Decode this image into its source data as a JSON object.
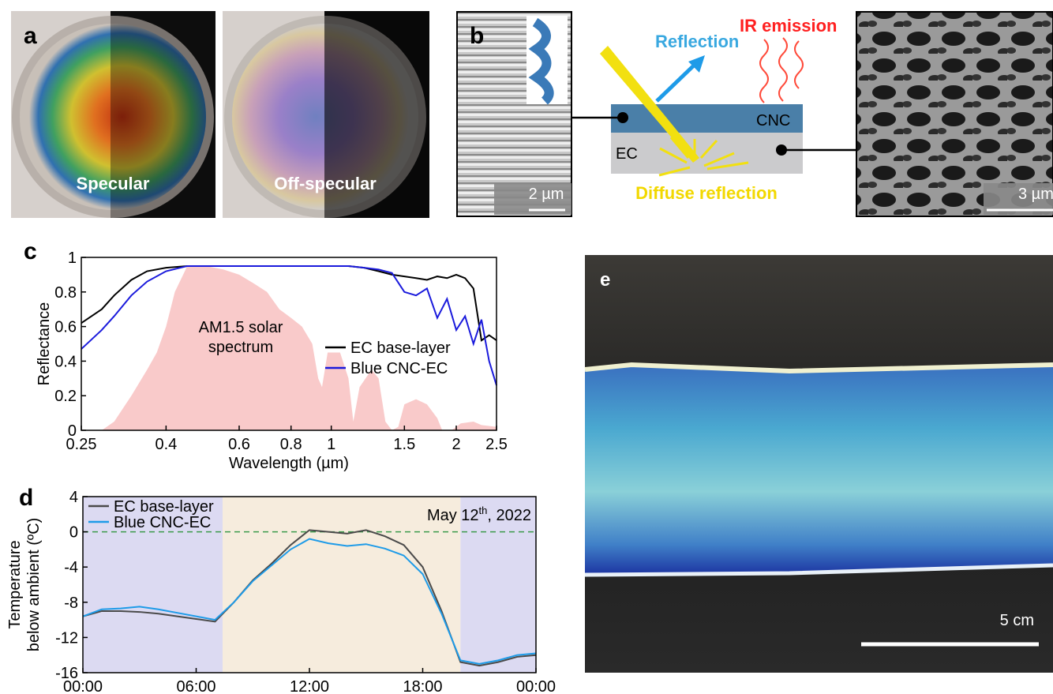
{
  "panels": {
    "a": {
      "label": "a",
      "left": "Specular",
      "right": "Off-specular"
    },
    "b": {
      "label": "b",
      "scale_left": "2 µm",
      "reflection": "Reflection",
      "ir": "IR emission",
      "cnc": "CNC",
      "ec": "EC",
      "diffuse": "Diffuse reflection",
      "scale_right": "3 µm"
    },
    "c": {
      "label": "c"
    },
    "d": {
      "label": "d"
    },
    "e": {
      "label": "e",
      "scale": "5 cm"
    }
  },
  "chart_data": [
    {
      "type": "line",
      "xlabel": "Wavelength (µm)",
      "ylabel": [
        "Reflectance"
      ],
      "xscale": "log",
      "xlim": [
        0.25,
        2.5
      ],
      "xticks": [
        0.25,
        0.4,
        0.6,
        0.8,
        1,
        1.5,
        2,
        2.5
      ],
      "ylim": [
        0,
        1
      ],
      "yticks": [
        0,
        0.2,
        0.4,
        0.6,
        0.8,
        1
      ],
      "x": [
        0.25,
        0.28,
        0.3,
        0.33,
        0.36,
        0.4,
        0.45,
        0.5,
        0.6,
        0.7,
        0.8,
        0.9,
        0.95,
        1,
        1.1,
        1.2,
        1.3,
        1.4,
        1.5,
        1.6,
        1.7,
        1.8,
        1.9,
        2,
        2.1,
        2.2,
        2.3,
        2.4,
        2.5
      ],
      "series": [
        {
          "name": "EC base-layer",
          "color": "#000000",
          "values": [
            0.62,
            0.7,
            0.78,
            0.87,
            0.92,
            0.94,
            0.95,
            0.95,
            0.95,
            0.95,
            0.95,
            0.95,
            0.95,
            0.95,
            0.95,
            0.94,
            0.92,
            0.9,
            0.89,
            0.88,
            0.87,
            0.89,
            0.88,
            0.9,
            0.88,
            0.82,
            0.52,
            0.55,
            0.52
          ]
        },
        {
          "name": "Blue CNC-EC",
          "color": "#1a1adc",
          "values": [
            0.47,
            0.58,
            0.66,
            0.78,
            0.86,
            0.92,
            0.95,
            0.95,
            0.95,
            0.95,
            0.95,
            0.95,
            0.95,
            0.95,
            0.95,
            0.94,
            0.93,
            0.91,
            0.8,
            0.78,
            0.82,
            0.65,
            0.76,
            0.58,
            0.66,
            0.5,
            0.64,
            0.4,
            0.26
          ]
        }
      ],
      "spectrum": {
        "label": [
          "AM1.5 solar",
          "spectrum"
        ],
        "color": "#f9caca",
        "x": [
          0.28,
          0.3,
          0.33,
          0.36,
          0.38,
          0.4,
          0.42,
          0.45,
          0.5,
          0.55,
          0.6,
          0.65,
          0.7,
          0.75,
          0.8,
          0.85,
          0.9,
          0.93,
          0.95,
          0.98,
          1.05,
          1.1,
          1.13,
          1.17,
          1.25,
          1.3,
          1.35,
          1.4,
          1.45,
          1.5,
          1.6,
          1.7,
          1.8,
          1.85,
          1.95,
          2.05,
          2.2,
          2.3,
          2.5
        ],
        "values": [
          0,
          0.05,
          0.2,
          0.35,
          0.45,
          0.6,
          0.8,
          0.95,
          0.95,
          0.93,
          0.9,
          0.85,
          0.8,
          0.7,
          0.65,
          0.6,
          0.5,
          0.3,
          0.25,
          0.45,
          0.45,
          0.3,
          0.05,
          0.25,
          0.35,
          0.3,
          0.05,
          0,
          0.02,
          0.15,
          0.18,
          0.15,
          0.07,
          0,
          0,
          0.04,
          0.05,
          0.03,
          0.02
        ]
      },
      "legend": "right"
    },
    {
      "type": "line",
      "ylabel": [
        "Temperature",
        "below ambient (ºC)"
      ],
      "xlim": [
        0,
        24
      ],
      "xticks": [
        {
          "value": 0,
          "label": "00:00"
        },
        {
          "value": 6,
          "label": "06:00"
        },
        {
          "value": 12,
          "label": "12:00"
        },
        {
          "value": 18,
          "label": "18:00"
        },
        {
          "value": 24,
          "label": "00:00"
        }
      ],
      "ylim": [
        -16,
        4
      ],
      "yticks": [
        -16,
        -12,
        -8,
        -4,
        0,
        4
      ],
      "x": [
        0,
        1,
        2,
        3,
        4,
        5,
        6,
        7,
        8,
        9,
        10,
        11,
        12,
        13,
        14,
        15,
        16,
        17,
        18,
        19,
        20,
        21,
        22,
        23,
        24
      ],
      "series": [
        {
          "name": "EC base-layer",
          "color": "#4a4a4a",
          "values": [
            -9.6,
            -9,
            -9,
            -9.1,
            -9.3,
            -9.6,
            -9.9,
            -10.2,
            -8,
            -5.5,
            -3.6,
            -1.5,
            0.2,
            0,
            -0.2,
            0.2,
            -0.5,
            -1.5,
            -4,
            -9,
            -14.8,
            -15.2,
            -14.8,
            -14.2,
            -14
          ]
        },
        {
          "name": "Blue CNC-EC",
          "color": "#1e9be8",
          "values": [
            -9.6,
            -8.8,
            -8.7,
            -8.5,
            -8.8,
            -9.2,
            -9.6,
            -10,
            -8,
            -5.6,
            -3.8,
            -2,
            -0.8,
            -1.3,
            -1.6,
            -1.4,
            -1.9,
            -2.7,
            -4.8,
            -9.3,
            -14.6,
            -15,
            -14.6,
            -14,
            -13.8
          ]
        }
      ],
      "shading": [
        {
          "from": 0,
          "to": 7.4,
          "color": "#dcdaf2"
        },
        {
          "from": 7.4,
          "to": 20,
          "color": "#f6ecdd"
        },
        {
          "from": 20,
          "to": 24,
          "color": "#dcdaf2"
        }
      ],
      "hline": {
        "value": 0,
        "color": "#3a9a4a"
      },
      "annotation": {
        "text": "May 12",
        "sup": "th",
        "rest": ", 2022"
      },
      "legend": "upper left"
    }
  ]
}
